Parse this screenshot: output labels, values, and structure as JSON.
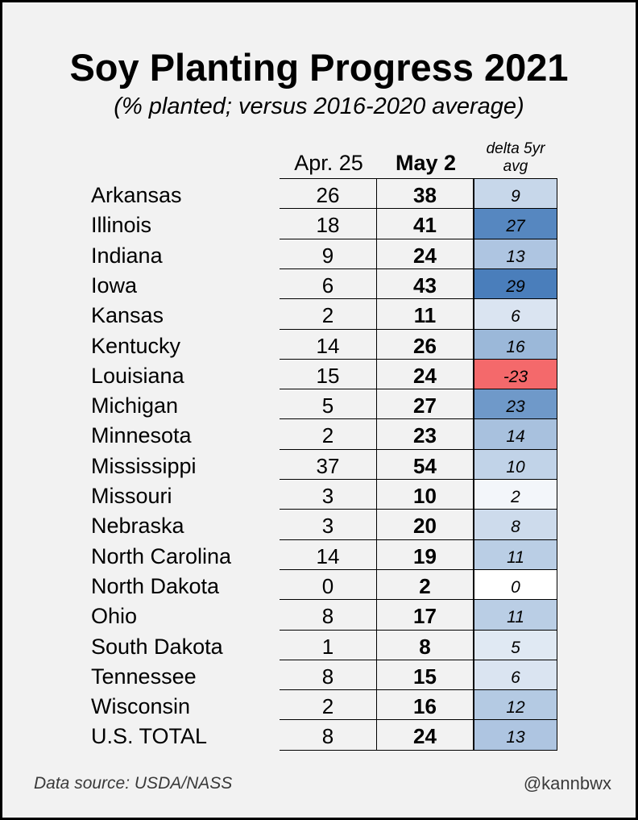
{
  "title": "Soy Planting Progress 2021",
  "subtitle": "(% planted; versus 2016-2020 average)",
  "headers": {
    "col1": "Apr. 25",
    "col2": "May 2",
    "col3_line1": "delta 5yr",
    "col3_line2": "avg"
  },
  "footer": {
    "source": "Data source: USDA/NASS",
    "handle": "@kannbwx"
  },
  "colors": {
    "positive_max": "#4a7ebb",
    "negative": "#f4696b",
    "neutral": "#ffffff"
  },
  "chart_data": {
    "type": "table",
    "title": "Soy Planting Progress 2021",
    "subtitle": "(% planted; versus 2016-2020 average)",
    "columns": [
      "Apr. 25",
      "May 2",
      "delta 5yr avg"
    ],
    "rows": [
      {
        "state": "Arkansas",
        "apr25": "26",
        "may2": "38",
        "delta": "9"
      },
      {
        "state": "Illinois",
        "apr25": "18",
        "may2": "41",
        "delta": "27"
      },
      {
        "state": "Indiana",
        "apr25": "9",
        "may2": "24",
        "delta": "13"
      },
      {
        "state": "Iowa",
        "apr25": "6",
        "may2": "43",
        "delta": "29"
      },
      {
        "state": "Kansas",
        "apr25": "2",
        "may2": "11",
        "delta": "6"
      },
      {
        "state": "Kentucky",
        "apr25": "14",
        "may2": "26",
        "delta": "16"
      },
      {
        "state": "Louisiana",
        "apr25": "15",
        "may2": "24",
        "delta": "-23"
      },
      {
        "state": "Michigan",
        "apr25": "5",
        "may2": "27",
        "delta": "23"
      },
      {
        "state": "Minnesota",
        "apr25": "2",
        "may2": "23",
        "delta": "14"
      },
      {
        "state": "Mississippi",
        "apr25": "37",
        "may2": "54",
        "delta": "10"
      },
      {
        "state": "Missouri",
        "apr25": "3",
        "may2": "10",
        "delta": "2"
      },
      {
        "state": "Nebraska",
        "apr25": "3",
        "may2": "20",
        "delta": "8"
      },
      {
        "state": "North Carolina",
        "apr25": "14",
        "may2": "19",
        "delta": "11"
      },
      {
        "state": "North Dakota",
        "apr25": "0",
        "may2": "2",
        "delta": "0"
      },
      {
        "state": "Ohio",
        "apr25": "8",
        "may2": "17",
        "delta": "11"
      },
      {
        "state": "South Dakota",
        "apr25": "1",
        "may2": "8",
        "delta": "5"
      },
      {
        "state": "Tennessee",
        "apr25": "8",
        "may2": "15",
        "delta": "6"
      },
      {
        "state": "Wisconsin",
        "apr25": "2",
        "may2": "16",
        "delta": "12"
      },
      {
        "state": "U.S. TOTAL",
        "apr25": "8",
        "may2": "24",
        "delta": "13"
      }
    ]
  }
}
